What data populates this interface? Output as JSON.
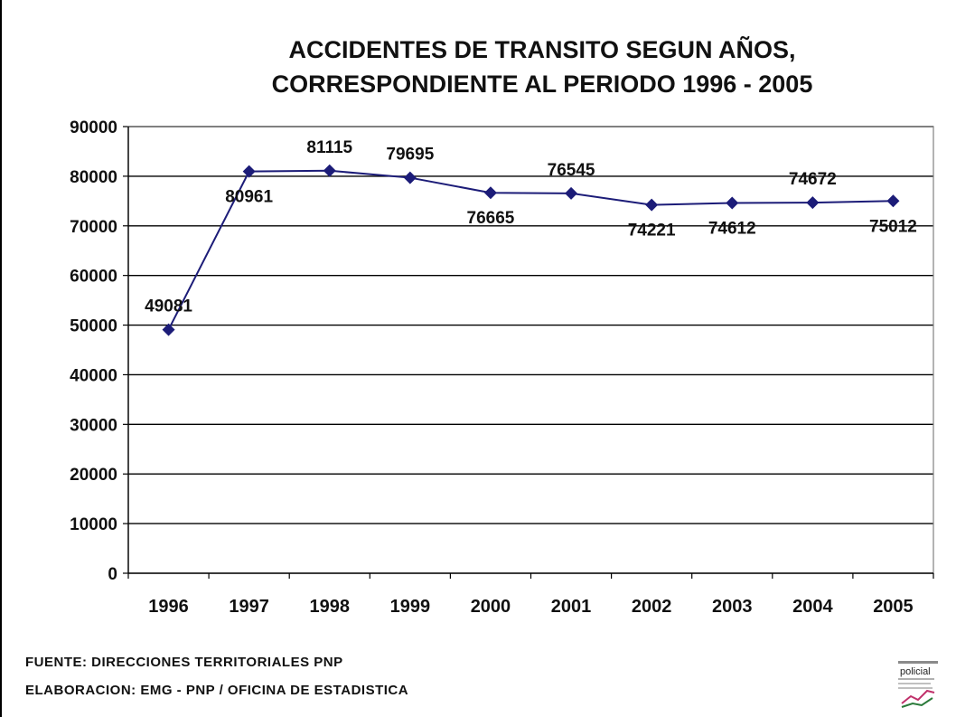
{
  "chart_data": {
    "type": "line",
    "title_line1": "ACCIDENTES DE TRANSITO SEGUN AÑOS,",
    "title_line2": "CORRESPONDIENTE AL PERIODO 1996 - 2005",
    "xlabel": "",
    "ylabel": "",
    "categories": [
      "1996",
      "1997",
      "1998",
      "1999",
      "2000",
      "2001",
      "2002",
      "2003",
      "2004",
      "2005"
    ],
    "series": [
      {
        "values": [
          49081,
          80961,
          81115,
          79695,
          76665,
          76545,
          74221,
          74612,
          74672,
          75012
        ],
        "color": "#1c1c78",
        "marker": "diamond"
      }
    ],
    "data_labels": [
      "49081",
      "80961",
      "81115",
      "79695",
      "76665",
      "76545",
      "74221",
      "74612",
      "74672",
      "75012"
    ],
    "label_placement": [
      "above",
      "below",
      "above",
      "above",
      "below",
      "above",
      "below",
      "below",
      "above",
      "below"
    ],
    "ylim": [
      0,
      90000
    ],
    "yticks": [
      0,
      10000,
      20000,
      30000,
      40000,
      50000,
      60000,
      70000,
      80000,
      90000
    ],
    "grid": true,
    "legend": "none"
  },
  "footer": {
    "source": "FUENTE: DIRECCIONES TERRITORIALES PNP",
    "elaboration": "ELABORACION: EMG - PNP / OFICINA DE ESTADISTICA"
  },
  "logo": {
    "text": "policial",
    "icon": "police-statistics-logo-icon"
  }
}
